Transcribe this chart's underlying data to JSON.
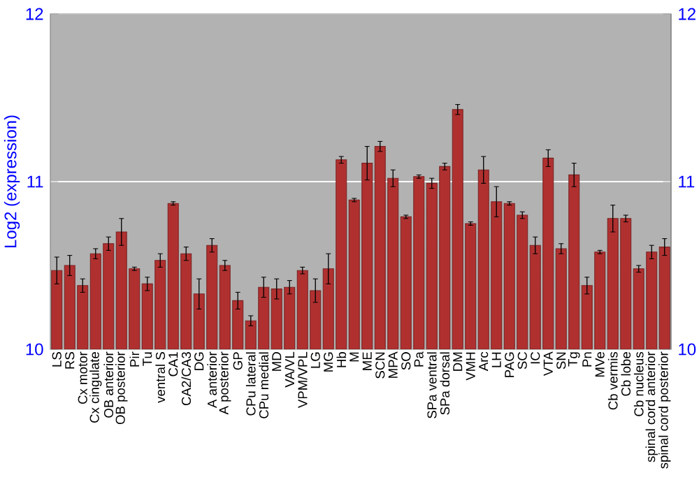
{
  "chart_data": {
    "type": "bar",
    "ylabel": "Log2 (expression)",
    "color": "#b03030",
    "categories": [
      "LS",
      "RS",
      "Cx motor",
      "Cx cingulate",
      "OB anterior",
      "OB posterior",
      "Pir",
      "Tu",
      "ventral S",
      "CA1",
      "CA2/CA3",
      "DG",
      "A anterior",
      "A posterior",
      "GP",
      "CPu lateral",
      "CPu medial",
      "MD",
      "VA/VL",
      "VPM/VPL",
      "LG",
      "MG",
      "Hb",
      "M",
      "ME",
      "SCN",
      "MPA",
      "SO",
      "Pa",
      "SPa ventral",
      "SPa dorsal",
      "DM",
      "VMH",
      "Arc",
      "LH",
      "PAG",
      "SC",
      "IC",
      "VTA",
      "SN",
      "Tg",
      "Pn",
      "MVe",
      "Cb vermis",
      "Cb lobe",
      "Cb nucleus",
      "spinal cord anterior",
      "spinal cord posterior"
    ],
    "values": [
      10.47,
      10.5,
      10.38,
      10.57,
      10.63,
      10.7,
      10.48,
      10.39,
      10.53,
      10.87,
      10.57,
      10.33,
      10.62,
      10.5,
      10.29,
      10.17,
      10.37,
      10.36,
      10.37,
      10.47,
      10.35,
      10.48,
      11.13,
      10.89,
      11.11,
      11.21,
      11.02,
      10.79,
      11.03,
      10.99,
      11.09,
      11.43,
      10.75,
      11.07,
      10.88,
      10.87,
      10.8,
      10.62,
      11.14,
      10.6,
      11.04,
      10.38,
      10.58,
      10.78,
      10.78,
      10.48,
      10.58,
      10.61
    ],
    "errors": [
      0.08,
      0.06,
      0.04,
      0.03,
      0.04,
      0.08,
      0.01,
      0.04,
      0.04,
      0.01,
      0.04,
      0.09,
      0.04,
      0.03,
      0.05,
      0.03,
      0.06,
      0.06,
      0.04,
      0.02,
      0.07,
      0.09,
      0.02,
      0.01,
      0.1,
      0.03,
      0.05,
      0.01,
      0.01,
      0.03,
      0.02,
      0.03,
      0.01,
      0.08,
      0.09,
      0.01,
      0.02,
      0.05,
      0.05,
      0.03,
      0.07,
      0.05,
      0.01,
      0.08,
      0.02,
      0.02,
      0.04,
      0.05
    ],
    "ylim": [
      10,
      12
    ],
    "yticks": [
      10,
      11,
      12
    ],
    "y2lim": [
      10,
      12
    ],
    "y2ticks": [
      10,
      11,
      12
    ],
    "grid": "y"
  }
}
